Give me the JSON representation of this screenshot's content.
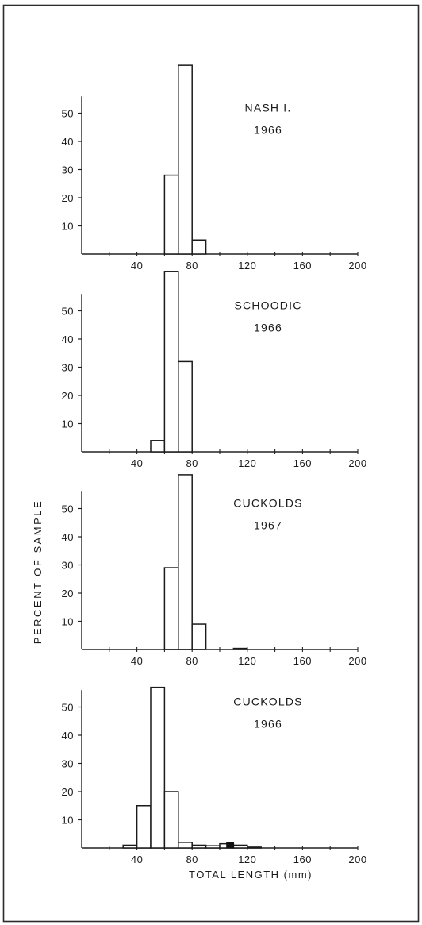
{
  "figure": {
    "ylabel": "PERCENT OF SAMPLE",
    "xlabel": "TOTAL LENGTH (mm)"
  },
  "chart_data": [
    {
      "type": "bar",
      "annotation": [
        "NASH I.",
        "1966"
      ],
      "bin_width": 10,
      "bins": [
        {
          "x": 60,
          "value": 28
        },
        {
          "x": 70,
          "value": 67
        },
        {
          "x": 80,
          "value": 5
        }
      ],
      "filled_bins": [],
      "xticks": [
        40,
        80,
        120,
        160,
        200
      ],
      "yticks": [
        10,
        20,
        30,
        40,
        50
      ],
      "xlim": [
        0,
        200
      ],
      "ylim": [
        0,
        68
      ]
    },
    {
      "type": "bar",
      "annotation": [
        "SCHOODIC",
        "1966"
      ],
      "bin_width": 10,
      "bins": [
        {
          "x": 50,
          "value": 4
        },
        {
          "x": 60,
          "value": 64
        },
        {
          "x": 70,
          "value": 32
        }
      ],
      "filled_bins": [],
      "xticks": [
        40,
        80,
        120,
        160,
        200
      ],
      "yticks": [
        10,
        20,
        30,
        40,
        50
      ],
      "xlim": [
        0,
        200
      ],
      "ylim": [
        0,
        68
      ]
    },
    {
      "type": "bar",
      "annotation": [
        "CUCKOLDS",
        "1967"
      ],
      "bin_width": 10,
      "bins": [
        {
          "x": 60,
          "value": 29
        },
        {
          "x": 70,
          "value": 62
        },
        {
          "x": 80,
          "value": 9
        },
        {
          "x": 110,
          "value": 0.4
        }
      ],
      "filled_bins": [],
      "xticks": [
        40,
        80,
        120,
        160,
        200
      ],
      "yticks": [
        10,
        20,
        30,
        40,
        50
      ],
      "xlim": [
        0,
        200
      ],
      "ylim": [
        0,
        68
      ]
    },
    {
      "type": "bar",
      "annotation": [
        "CUCKOLDS",
        "1966"
      ],
      "bin_width": 10,
      "bins": [
        {
          "x": 30,
          "value": 1
        },
        {
          "x": 40,
          "value": 15
        },
        {
          "x": 50,
          "value": 57
        },
        {
          "x": 60,
          "value": 20
        },
        {
          "x": 70,
          "value": 2
        },
        {
          "x": 80,
          "value": 1
        },
        {
          "x": 90,
          "value": 0.8
        },
        {
          "x": 100,
          "value": 1.5
        },
        {
          "x": 110,
          "value": 1
        },
        {
          "x": 120,
          "value": 0.3
        }
      ],
      "filled_bins": [
        {
          "x": 105,
          "width": 5,
          "value": 2
        }
      ],
      "xticks": [
        40,
        80,
        120,
        160,
        200
      ],
      "yticks": [
        10,
        20,
        30,
        40,
        50
      ],
      "xlim": [
        0,
        200
      ],
      "ylim": [
        0,
        68
      ]
    }
  ]
}
